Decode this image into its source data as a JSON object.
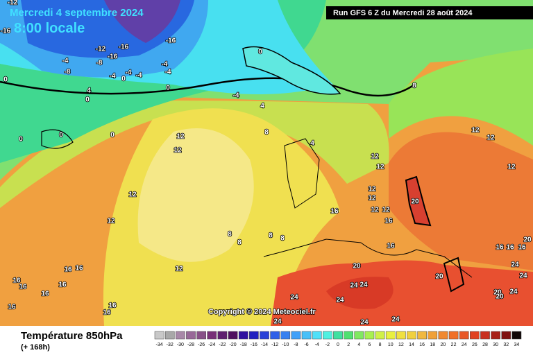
{
  "header": {
    "date": "Mercredi 4 septembre 2024",
    "time": "8:00 locale",
    "run": "Run GFS 6 Z du Mercredi 28 août 2024"
  },
  "footer": {
    "title": "Température 850hPa",
    "lead": "(+ 168h)",
    "copyright": "Copyright © 2024 Meteociel.fr"
  },
  "legend": {
    "ticks": [
      -34,
      -32,
      -30,
      -28,
      -26,
      -24,
      -22,
      -20,
      -18,
      -16,
      -14,
      -12,
      -10,
      -8,
      -6,
      -4,
      -2,
      0,
      2,
      4,
      6,
      8,
      10,
      12,
      14,
      16,
      18,
      20,
      22,
      24,
      26,
      28,
      30,
      32,
      34
    ],
    "colors": [
      "#c8c8c8",
      "#a8a8a8",
      "#a888a8",
      "#986898",
      "#885088",
      "#783078",
      "#602070",
      "#501060",
      "#3010a0",
      "#2020c0",
      "#2840d8",
      "#3060e8",
      "#3880f0",
      "#40a0f8",
      "#48c0f8",
      "#50e0f8",
      "#50f0e0",
      "#40e0a0",
      "#50e070",
      "#80e860",
      "#a8f050",
      "#d0f048",
      "#e8f040",
      "#f0e040",
      "#f0d040",
      "#f0b840",
      "#f0a038",
      "#f08830",
      "#f07028",
      "#e85828",
      "#e04020",
      "#c83020",
      "#a82018",
      "#801010",
      "#100808"
    ]
  },
  "labels": [
    -12,
    -16,
    -12,
    -16,
    -16,
    -8,
    -16,
    -4,
    -8,
    -4,
    -4,
    -4,
    -4,
    -4,
    -4,
    0,
    0,
    0,
    4,
    0,
    -4,
    4,
    0,
    0,
    0,
    0,
    12,
    12,
    8,
    4,
    8,
    12,
    12,
    12,
    12,
    12,
    12,
    12,
    12,
    12,
    12,
    12,
    20,
    16,
    16,
    8,
    8,
    8,
    8,
    12,
    16,
    16,
    16,
    16,
    16,
    16,
    16,
    16,
    16,
    16,
    20,
    24,
    24,
    24,
    24,
    24,
    24,
    24,
    20,
    20,
    20,
    24,
    24,
    24,
    16,
    16,
    16,
    20
  ]
}
